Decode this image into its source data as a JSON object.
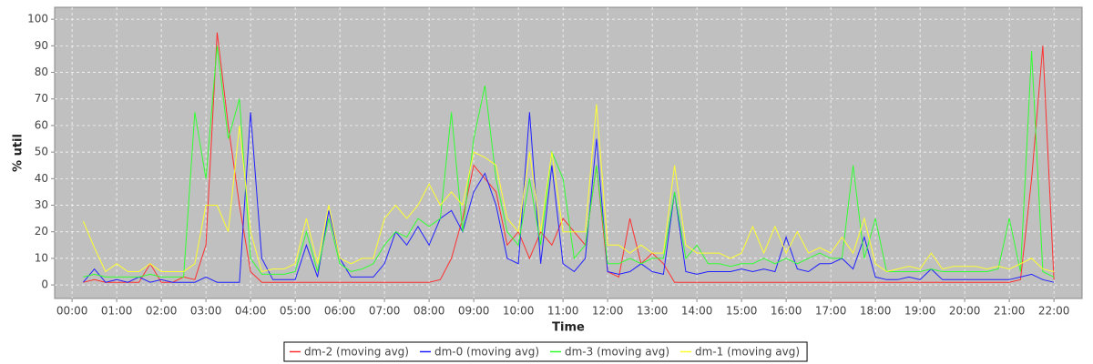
{
  "chart_data": {
    "type": "line",
    "y_label": "% util",
    "x_label": "Time",
    "x": [
      0.25,
      0.5,
      0.75,
      1,
      1.25,
      1.5,
      1.75,
      2,
      2.25,
      2.5,
      2.75,
      3,
      3.25,
      3.5,
      3.75,
      4,
      4.25,
      4.5,
      4.75,
      5,
      5.25,
      5.5,
      5.75,
      6,
      6.25,
      6.5,
      6.75,
      7,
      7.25,
      7.5,
      7.75,
      8,
      8.25,
      8.5,
      8.75,
      9,
      9.25,
      9.5,
      9.75,
      10,
      10.25,
      10.5,
      10.75,
      11,
      11.25,
      11.5,
      11.75,
      12,
      12.25,
      12.5,
      12.75,
      13,
      13.25,
      13.5,
      13.75,
      14,
      14.25,
      14.5,
      14.75,
      15,
      15.25,
      15.5,
      15.75,
      16,
      16.25,
      16.5,
      16.75,
      17,
      17.25,
      17.5,
      17.75,
      18,
      18.25,
      18.5,
      18.75,
      19,
      19.25,
      19.5,
      19.75,
      20,
      20.25,
      20.5,
      20.75,
      21,
      21.25,
      21.5,
      21.75,
      22
    ],
    "series": [
      {
        "name": "dm-2 (moving avg)",
        "color": "#ff3030",
        "values": [
          1,
          2,
          1,
          1,
          1,
          1,
          8,
          1,
          1,
          3,
          2,
          15,
          95,
          60,
          30,
          5,
          1,
          1,
          1,
          1,
          1,
          1,
          1,
          1,
          1,
          1,
          1,
          1,
          1,
          1,
          1,
          1,
          2,
          10,
          25,
          45,
          40,
          35,
          15,
          20,
          10,
          20,
          15,
          25,
          20,
          15,
          45,
          5,
          3,
          25,
          8,
          12,
          8,
          1,
          1,
          1,
          1,
          1,
          1,
          1,
          1,
          1,
          1,
          1,
          1,
          1,
          1,
          1,
          1,
          1,
          1,
          1,
          1,
          1,
          1,
          1,
          1,
          1,
          1,
          1,
          1,
          1,
          1,
          1,
          2,
          40,
          90,
          2
        ]
      },
      {
        "name": "dm-0 (moving avg)",
        "color": "#2020ff",
        "values": [
          1,
          6,
          1,
          2,
          1,
          3,
          1,
          2,
          1,
          1,
          1,
          3,
          1,
          1,
          1,
          65,
          10,
          2,
          2,
          2,
          15,
          3,
          28,
          10,
          3,
          3,
          3,
          8,
          20,
          15,
          22,
          15,
          25,
          28,
          20,
          35,
          42,
          30,
          10,
          8,
          65,
          8,
          45,
          8,
          5,
          10,
          55,
          5,
          4,
          5,
          8,
          5,
          4,
          35,
          5,
          4,
          5,
          5,
          5,
          6,
          5,
          6,
          5,
          18,
          6,
          5,
          8,
          8,
          10,
          6,
          18,
          3,
          2,
          2,
          3,
          2,
          6,
          2,
          2,
          2,
          2,
          2,
          2,
          2,
          3,
          4,
          2,
          1
        ]
      },
      {
        "name": "dm-3 (moving avg)",
        "color": "#30ff30",
        "values": [
          3,
          4,
          3,
          3,
          3,
          3,
          4,
          3,
          3,
          3,
          65,
          40,
          90,
          55,
          70,
          10,
          4,
          4,
          4,
          5,
          20,
          5,
          25,
          8,
          5,
          6,
          8,
          15,
          20,
          18,
          25,
          22,
          25,
          65,
          20,
          55,
          75,
          40,
          20,
          15,
          40,
          15,
          50,
          40,
          10,
          15,
          45,
          8,
          8,
          10,
          8,
          10,
          10,
          35,
          10,
          15,
          8,
          8,
          7,
          8,
          8,
          10,
          8,
          10,
          8,
          10,
          12,
          10,
          10,
          45,
          10,
          25,
          5,
          5,
          5,
          5,
          6,
          5,
          5,
          5,
          5,
          5,
          6,
          25,
          5,
          88,
          5,
          3
        ]
      },
      {
        "name": "dm-1 (moving avg)",
        "color": "#ffff30",
        "values": [
          24,
          14,
          5,
          8,
          5,
          5,
          8,
          5,
          5,
          5,
          8,
          30,
          30,
          20,
          60,
          20,
          5,
          6,
          6,
          8,
          25,
          8,
          30,
          10,
          8,
          10,
          10,
          25,
          30,
          25,
          30,
          38,
          30,
          35,
          30,
          50,
          48,
          45,
          25,
          20,
          50,
          20,
          50,
          20,
          20,
          20,
          68,
          15,
          15,
          12,
          15,
          12,
          12,
          45,
          15,
          12,
          12,
          12,
          10,
          12,
          22,
          12,
          22,
          12,
          20,
          12,
          14,
          12,
          18,
          12,
          25,
          8,
          5,
          6,
          7,
          6,
          12,
          6,
          7,
          7,
          7,
          6,
          7,
          6,
          8,
          10,
          6,
          5
        ]
      }
    ],
    "xlim": [
      -0.39,
      22.63
    ],
    "ylim": [
      -5.1,
      104.5
    ],
    "xticks": [
      {
        "value": 0,
        "label": "00:00"
      },
      {
        "value": 1,
        "label": "01:00"
      },
      {
        "value": 2,
        "label": "02:00"
      },
      {
        "value": 3,
        "label": "03:00"
      },
      {
        "value": 4,
        "label": "04:00"
      },
      {
        "value": 5,
        "label": "05:00"
      },
      {
        "value": 6,
        "label": "06:00"
      },
      {
        "value": 7,
        "label": "07:00"
      },
      {
        "value": 8,
        "label": "08:00"
      },
      {
        "value": 9,
        "label": "09:00"
      },
      {
        "value": 10,
        "label": "10:00"
      },
      {
        "value": 11,
        "label": "11:00"
      },
      {
        "value": 12,
        "label": "12:00"
      },
      {
        "value": 13,
        "label": "13:00"
      },
      {
        "value": 14,
        "label": "14:00"
      },
      {
        "value": 15,
        "label": "15:00"
      },
      {
        "value": 16,
        "label": "16:00"
      },
      {
        "value": 17,
        "label": "17:00"
      },
      {
        "value": 18,
        "label": "18:00"
      },
      {
        "value": 19,
        "label": "19:00"
      },
      {
        "value": 20,
        "label": "20:00"
      },
      {
        "value": 21,
        "label": "21:00"
      },
      {
        "value": 22,
        "label": "22:00"
      }
    ],
    "yticks": [
      0,
      10,
      20,
      30,
      40,
      50,
      60,
      70,
      80,
      90,
      100
    ],
    "grid": true,
    "legend": "bottom"
  }
}
